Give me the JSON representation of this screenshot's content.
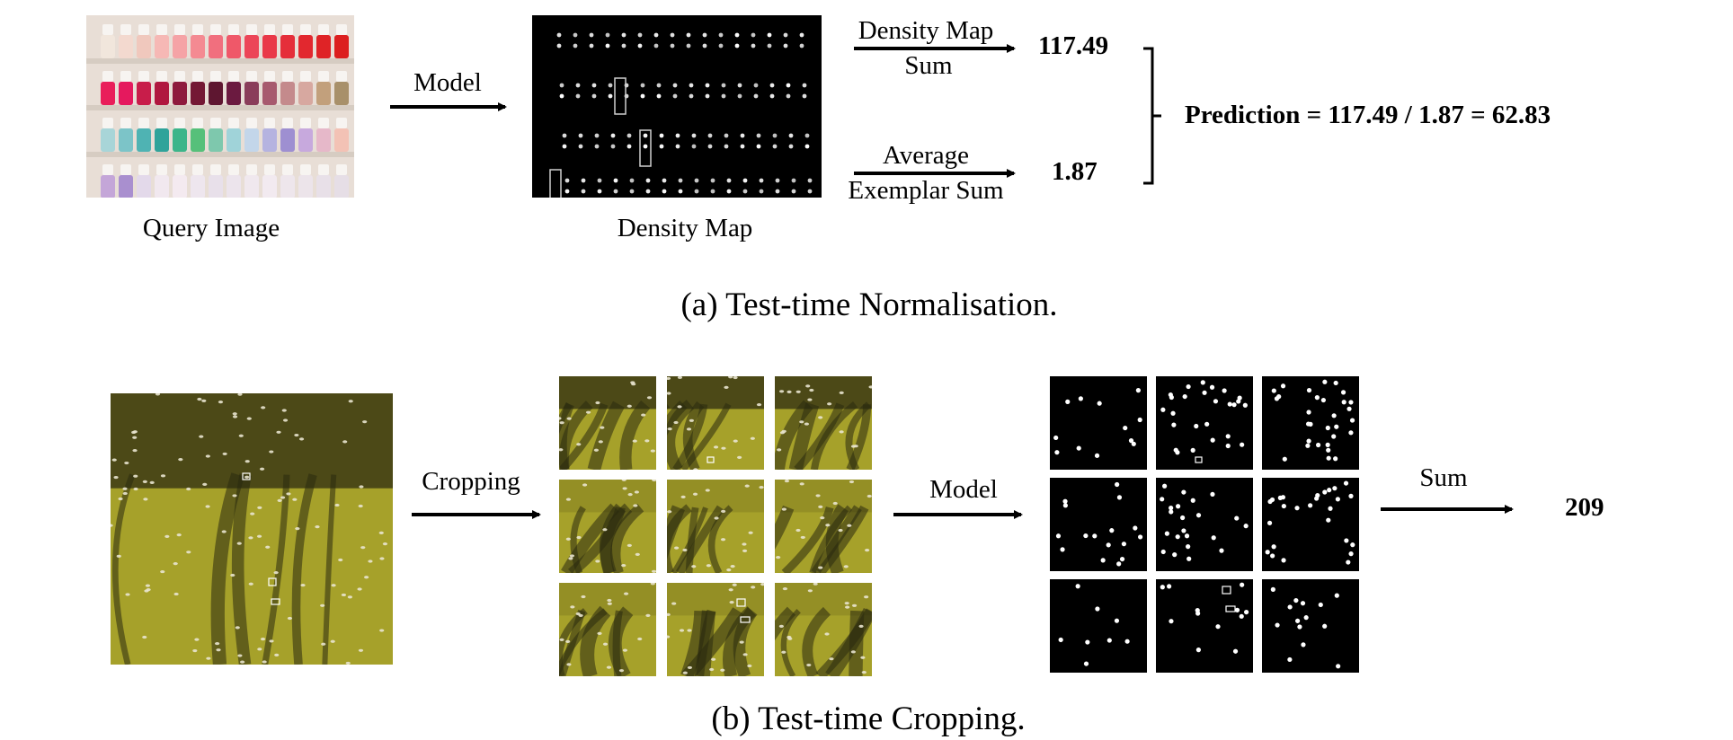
{
  "diagram_a": {
    "query_image_label": "Query Image",
    "density_map_label": "Density Map",
    "model_label": "Model",
    "density_map_sum_top": "Density Map",
    "density_map_sum_bottom": "Sum",
    "density_sum_value": "117.49",
    "average_top": "Average",
    "average_bottom": "Exemplar Sum",
    "exemplar_sum_value": "1.87",
    "prediction": "Prediction = 117.49 / 1.87  = 62.83",
    "caption": "(a)  Test-time Normalisation."
  },
  "diagram_b": {
    "cropping_label": "Cropping",
    "model_label": "Model",
    "sum_label": "Sum",
    "result_value": "209",
    "caption": "(b)  Test-time Cropping."
  },
  "colors": {
    "arrow": "#000000",
    "density_background": "#000000",
    "field_green": "#a6a12a",
    "shadow": "#2a2a0e",
    "shelf": "#e6ddd5"
  },
  "icons": [
    "nail-polish-shelf-image",
    "density-map-image",
    "sheep-field-image",
    "crop-tile-image",
    "density-tile-image"
  ]
}
